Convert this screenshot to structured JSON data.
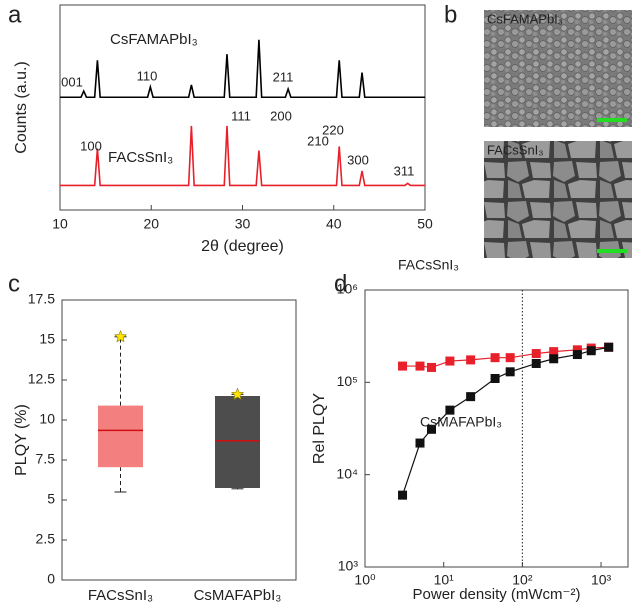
{
  "chart_data": [
    {
      "type": "line",
      "panel": "a",
      "xlabel": "2θ (degree)",
      "ylabel": "Counts (a.u.)",
      "xlim": [
        10,
        50
      ],
      "xticks": [
        10,
        20,
        30,
        40,
        50
      ],
      "ylim": [
        0,
        100
      ],
      "x": [
        10,
        12.3,
        12.6,
        12.9,
        13.8,
        14.1,
        14.4,
        19.6,
        19.9,
        20.2,
        24.1,
        24.4,
        24.7,
        28.0,
        28.3,
        28.6,
        31.5,
        31.8,
        32.1,
        34.7,
        35.0,
        35.3,
        40.3,
        40.6,
        40.9,
        42.8,
        43.1,
        43.4,
        47.8,
        48.1,
        48.4,
        50
      ],
      "series": [
        {
          "name": "CsFAMAPbI₃",
          "color": "#000000",
          "values": [
            55,
            55,
            58,
            55,
            55,
            73,
            55,
            55,
            60,
            55,
            55,
            61,
            55,
            55,
            76,
            55,
            55,
            83,
            55,
            55,
            59,
            55,
            55,
            73,
            55,
            55,
            67,
            55,
            55,
            55,
            55,
            55
          ]
        },
        {
          "name": "FACsSnI₃",
          "color": "#e8202a",
          "values": [
            12,
            12,
            12,
            12,
            12,
            30,
            12,
            12,
            12,
            12,
            12,
            41,
            12,
            12,
            41,
            12,
            12,
            29,
            12,
            12,
            12,
            12,
            12,
            31,
            12,
            12,
            19,
            12,
            12,
            13,
            12,
            12
          ]
        }
      ],
      "annotations": [
        "001",
        "110",
        "211",
        "100",
        "111",
        "200",
        "210",
        "220",
        "300",
        "311"
      ]
    },
    {
      "type": "image",
      "panel": "b",
      "label_color": "#22dd22",
      "images": [
        {
          "label": "CsFAMAPbI₃"
        },
        {
          "label": "FACsSnI₃"
        }
      ]
    },
    {
      "type": "box",
      "panel": "c",
      "ylabel": "PLQY (%)",
      "categories": [
        "FACsSnI₃",
        "CsMAFAPbI₃"
      ],
      "colors": [
        "#f47f7f",
        "#4d4d4d"
      ],
      "label_colors": [
        "#e8202a",
        "#222222"
      ],
      "median_color": "#d01010",
      "marker_color": "#ffe400",
      "ylim": [
        0,
        17.5
      ],
      "yticks": [
        0,
        2.5,
        5,
        7.5,
        10,
        12.5,
        15,
        17.5
      ],
      "boxes": [
        {
          "min": 5.5,
          "q1": 7.05,
          "median": 9.35,
          "q3": 10.9,
          "max": 15.2
        },
        {
          "min": 5.7,
          "q1": 5.75,
          "median": 8.7,
          "q3": 11.5,
          "max": 11.6
        }
      ]
    },
    {
      "type": "scatter-line",
      "panel": "d",
      "xlabel": "Power density (mWcm⁻²)",
      "ylabel": "Rel PLQY",
      "xscale": "log",
      "yscale": "log",
      "xlim": [
        1,
        2200
      ],
      "ylim": [
        1000,
        1000000
      ],
      "xticks": [
        {
          "value": 1,
          "label": "10⁰"
        },
        {
          "value": 10,
          "label": "10¹"
        },
        {
          "value": 100,
          "label": "10²"
        },
        {
          "value": 1000,
          "label": "10³"
        }
      ],
      "yticks": [
        {
          "value": 1000,
          "label": "10³"
        },
        {
          "value": 10000,
          "label": "10⁴"
        },
        {
          "value": 100000,
          "label": "10⁵"
        },
        {
          "value": 1000000,
          "label": "10⁶"
        }
      ],
      "vline": 100,
      "x": [
        3,
        5,
        7,
        12,
        22,
        45,
        70,
        150,
        250,
        500,
        750,
        1250
      ],
      "series": [
        {
          "name": "FACsSnI₃",
          "color": "#e8202a",
          "values": [
            150000,
            150000,
            145000,
            170000,
            175000,
            185000,
            185000,
            205000,
            215000,
            225000,
            235000,
            240000
          ]
        },
        {
          "name": "CsMAFAPbI₃",
          "color": "#111111",
          "values": [
            6000,
            22000,
            31000,
            50000,
            70000,
            110000,
            130000,
            160000,
            180000,
            200000,
            220000,
            240000
          ]
        }
      ]
    }
  ]
}
